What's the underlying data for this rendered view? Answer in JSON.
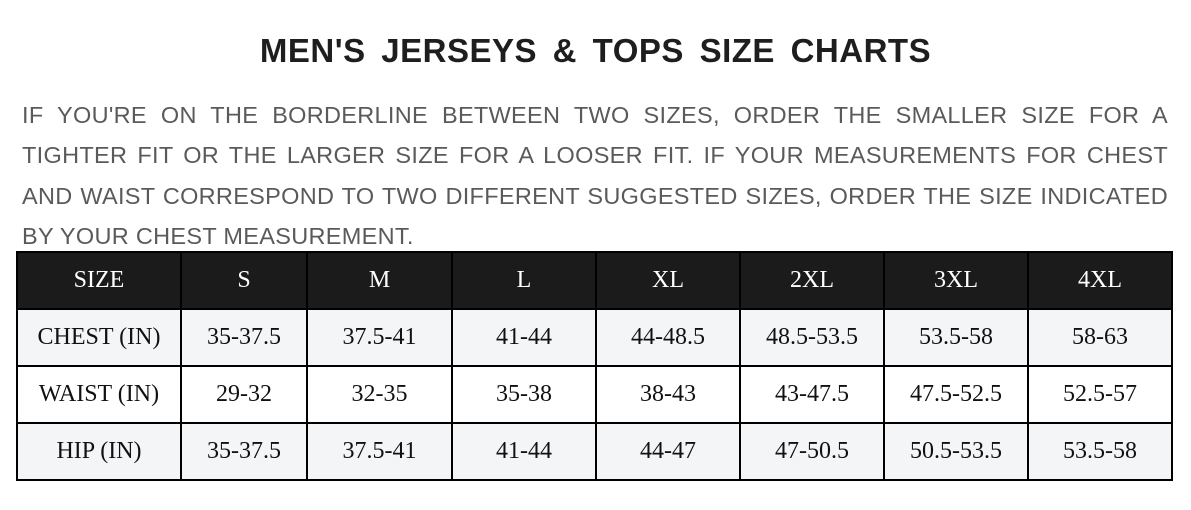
{
  "title": "MEN'S JERSEYS & TOPS SIZE CHARTS",
  "description": "IF YOU'RE ON THE BORDERLINE BETWEEN TWO SIZES, ORDER THE SMALLER SIZE FOR A TIGHTER FIT OR THE LARGER SIZE FOR A LOOSER FIT. IF YOUR MEASUREMENTS FOR CHEST AND WAIST CORRESPOND TO TWO DIFFERENT SUGGESTED SIZES, ORDER THE SIZE INDICATED BY YOUR CHEST MEASUREMENT.",
  "table": {
    "headers": [
      "SIZE",
      "S",
      "M",
      "L",
      "XL",
      "2XL",
      "3XL",
      "4XL"
    ],
    "rows": [
      [
        "CHEST (IN)",
        "35-37.5",
        "37.5-41",
        "41-44",
        "44-48.5",
        "48.5-53.5",
        "53.5-58",
        "58-63"
      ],
      [
        "WAIST (IN)",
        "29-32",
        "32-35",
        "35-38",
        "38-43",
        "43-47.5",
        "47.5-52.5",
        "52.5-57"
      ],
      [
        "HIP (IN)",
        "35-37.5",
        "37.5-41",
        "41-44",
        "44-47",
        "47-50.5",
        "50.5-53.5",
        "53.5-58"
      ]
    ]
  }
}
